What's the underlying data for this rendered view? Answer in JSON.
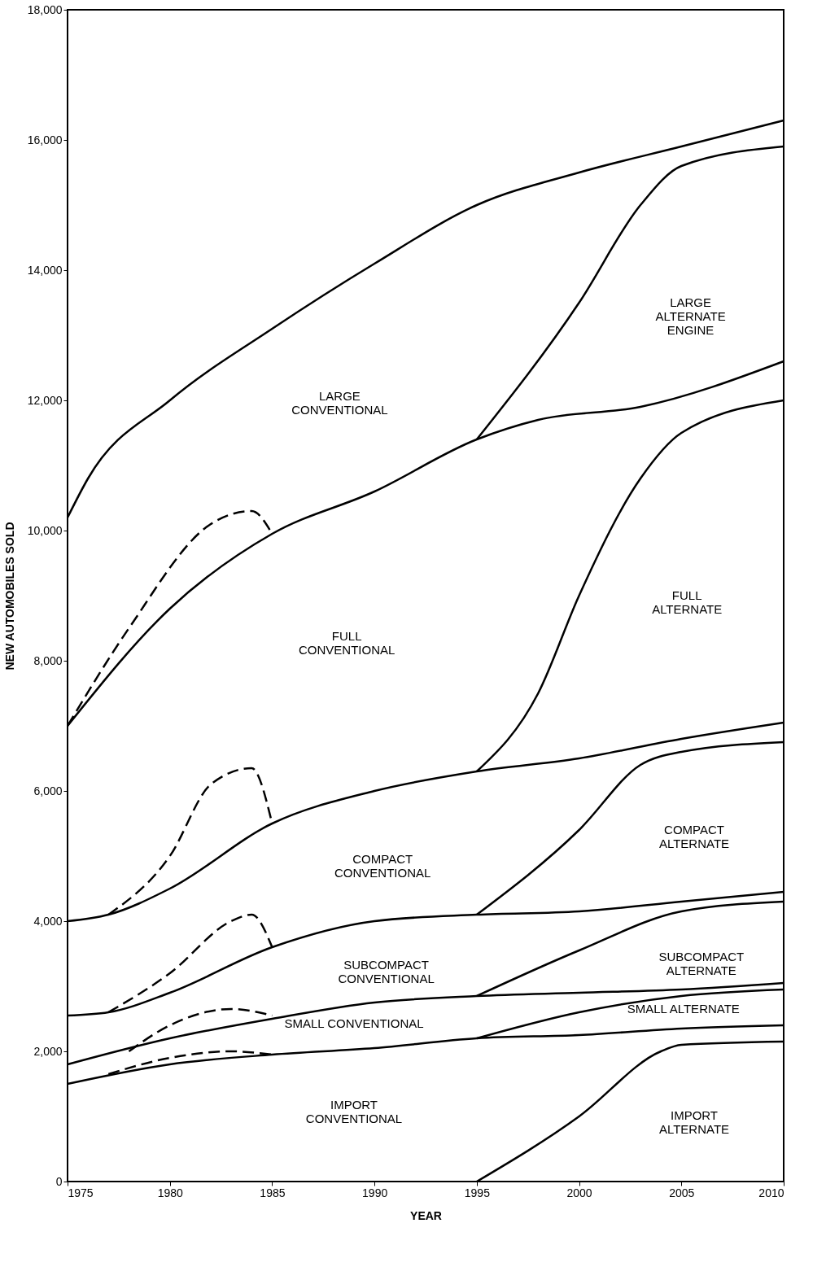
{
  "chart_data": {
    "type": "line",
    "xlabel": "YEAR",
    "ylabel": "NEW AUTOMOBILES SOLD",
    "xlim": [
      1975,
      2010
    ],
    "ylim": [
      0,
      18000
    ],
    "xticks": [
      1975,
      1980,
      1985,
      1990,
      1995,
      2000,
      2005,
      2010
    ],
    "yticks": [
      0,
      {
        "value": 2000,
        "label": "2,000"
      },
      {
        "value": 4000,
        "label": "4,000"
      },
      {
        "value": 6000,
        "label": "6,000"
      },
      {
        "value": 8000,
        "label": "8,000"
      },
      {
        "value": 10000,
        "label": "10,000"
      },
      {
        "value": 12000,
        "label": "12,000"
      },
      {
        "value": 14000,
        "label": "14,000"
      },
      {
        "value": 16000,
        "label": "16,000"
      },
      {
        "value": 18000,
        "label": "18,000"
      }
    ],
    "grid": false,
    "line_style": "solid",
    "series": [
      {
        "color": "#000000",
        "x": [
          1975,
          1976,
          1980,
          1985,
          1990,
          1995,
          2000,
          2005,
          2010
        ],
        "values": [
          10200,
          10800,
          12000,
          13100,
          14100,
          15000,
          15500,
          15900,
          16300
        ]
      },
      {
        "color": "#000000",
        "x": [
          1995,
          2000,
          2003,
          2005,
          2010
        ],
        "values": [
          11400,
          13500,
          15000,
          15600,
          15900
        ]
      },
      {
        "color": "#000000",
        "x": [
          1975,
          1980,
          1985,
          1990,
          1995,
          1998,
          2003,
          2010
        ],
        "values": [
          7000,
          8800,
          9950,
          10600,
          11400,
          11700,
          11900,
          12600
        ]
      },
      {
        "color": "#000000",
        "line_style": "dashed",
        "x": [
          1975,
          1978,
          1982,
          1984,
          1985
        ],
        "values": [
          7000,
          8500,
          10100,
          10300,
          9950
        ]
      },
      {
        "color": "#000000",
        "x": [
          1995,
          1998,
          2000,
          2003,
          2005,
          2010
        ],
        "values": [
          6300,
          7500,
          9000,
          10800,
          11500,
          12000
        ]
      },
      {
        "color": "#000000",
        "x": [
          1975,
          1977,
          1980,
          1985,
          1990,
          1995,
          2000,
          2005,
          2010
        ],
        "values": [
          4000,
          4100,
          4500,
          5500,
          6000,
          6300,
          6500,
          6800,
          7050
        ]
      },
      {
        "color": "#000000",
        "line_style": "dashed",
        "x": [
          1977,
          1980,
          1982,
          1984,
          1985
        ],
        "values": [
          4100,
          5000,
          6100,
          6350,
          5500
        ]
      },
      {
        "color": "#000000",
        "x": [
          1995,
          2000,
          2003,
          2005,
          2010
        ],
        "values": [
          4100,
          5400,
          6400,
          6600,
          6750
        ]
      },
      {
        "color": "#000000",
        "x": [
          1975,
          1977,
          1980,
          1985,
          1990,
          1995,
          2000,
          2005,
          2010
        ],
        "values": [
          2550,
          2600,
          2900,
          3600,
          4000,
          4100,
          4150,
          4300,
          4450
        ]
      },
      {
        "color": "#000000",
        "line_style": "dashed",
        "x": [
          1977,
          1980,
          1983,
          1984,
          1985
        ],
        "values": [
          2600,
          3200,
          4000,
          4100,
          3600
        ]
      },
      {
        "color": "#000000",
        "x": [
          1995,
          2000,
          2005,
          2010
        ],
        "values": [
          2850,
          3550,
          4150,
          4300
        ]
      },
      {
        "color": "#000000",
        "x": [
          1975,
          1980,
          1985,
          1990,
          1995,
          2000,
          2005,
          2010
        ],
        "values": [
          1800,
          2200,
          2500,
          2750,
          2850,
          2900,
          2950,
          3050
        ]
      },
      {
        "color": "#000000",
        "line_style": "dashed",
        "x": [
          1978,
          1980,
          1983,
          1985
        ],
        "values": [
          2000,
          2400,
          2650,
          2550
        ]
      },
      {
        "color": "#000000",
        "x": [
          1995,
          2000,
          2005,
          2010
        ],
        "values": [
          2200,
          2600,
          2850,
          2950
        ]
      },
      {
        "color": "#000000",
        "x": [
          1975,
          1980,
          1985,
          1990,
          1995,
          2000,
          2005,
          2010
        ],
        "values": [
          1500,
          1800,
          1950,
          2050,
          2200,
          2250,
          2350,
          2400
        ]
      },
      {
        "color": "#000000",
        "line_style": "dashed",
        "x": [
          1977,
          1980,
          1983,
          1985
        ],
        "values": [
          1650,
          1900,
          2000,
          1950
        ]
      },
      {
        "color": "#000000",
        "x": [
          1995,
          2000,
          2004,
          2005,
          2010
        ],
        "values": [
          0,
          1000,
          2000,
          2100,
          2150
        ]
      }
    ],
    "annotations": [
      "LARGE\nCONVENTIONAL",
      "LARGE\nALTERNATE\nENGINE",
      "FULL\nCONVENTIONAL",
      "FULL\nALTERNATE",
      "COMPACT\nCONVENTIONAL",
      "COMPACT\nALTERNATE",
      "SUBCOMPACT\nCONVENTIONAL",
      "SUBCOMPACT\nALTERNATE",
      "SMALL CONVENTIONAL",
      "SMALL ALTERNATE",
      "IMPORT\nCONVENTIONAL",
      "IMPORT\nALTERNATE"
    ]
  }
}
